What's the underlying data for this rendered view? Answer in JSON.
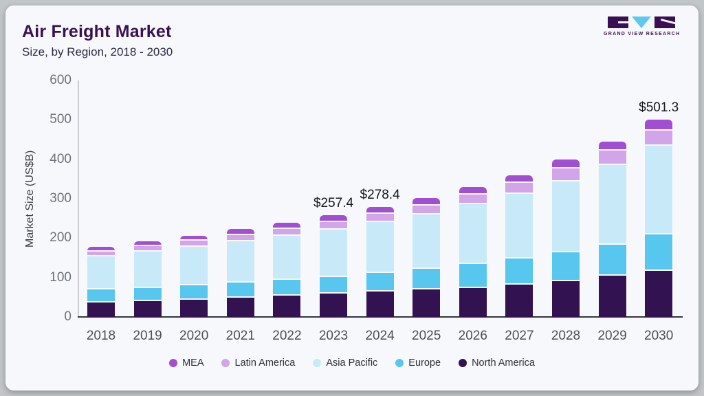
{
  "header": {
    "title": "Air Freight Market",
    "subtitle": "Size, by Region, 2018 - 2030"
  },
  "logo": {
    "text": "GRAND VIEW RESEARCH",
    "mark_dark_color": "#3b1052",
    "mark_triangle_color": "#5ec9ec"
  },
  "chart_data": {
    "type": "bar",
    "stacked": true,
    "title": "Air Freight Market",
    "subtitle": "Size, by Region, 2018 - 2030",
    "xlabel": "",
    "ylabel": "Market Size (US$B)",
    "ylim": [
      0,
      600
    ],
    "yticks": [
      0,
      100,
      200,
      300,
      400,
      500,
      600
    ],
    "grid": false,
    "categories": [
      "2018",
      "2019",
      "2020",
      "2021",
      "2022",
      "2023",
      "2024",
      "2025",
      "2026",
      "2027",
      "2028",
      "2029",
      "2030"
    ],
    "series": [
      {
        "name": "North America",
        "color": "#331251",
        "values": [
          37,
          40,
          43,
          48,
          54,
          59,
          64,
          69,
          74,
          82,
          91,
          104,
          116
        ]
      },
      {
        "name": "Europe",
        "color": "#57c7f0",
        "values": [
          32,
          33,
          37,
          39,
          40,
          43,
          48,
          53,
          60,
          66,
          73,
          80,
          93
        ]
      },
      {
        "name": "Asia Pacific",
        "color": "#c7e9f8",
        "values": [
          85,
          93,
          98,
          104,
          112,
          119,
          128,
          138,
          152,
          164,
          179,
          202,
          226
        ]
      },
      {
        "name": "Latin America",
        "color": "#d2a4e8",
        "values": [
          12,
          13,
          15,
          17,
          17,
          20,
          21,
          23,
          25,
          29,
          33,
          36,
          38
        ]
      },
      {
        "name": "MEA",
        "color": "#a14ed2",
        "values": [
          12,
          13,
          13,
          15,
          16,
          16.4,
          17.4,
          18,
          18,
          19,
          23,
          22,
          28.3
        ]
      }
    ],
    "totals": [
      178,
      192,
      206,
      223,
      239,
      257.4,
      278.4,
      301,
      329,
      360,
      399,
      444,
      501.3
    ],
    "annotations": [
      {
        "category": "2023",
        "text": "$257.4"
      },
      {
        "category": "2024",
        "text": "$278.4"
      },
      {
        "category": "2030",
        "text": "$501.3"
      }
    ],
    "legend_position": "bottom",
    "legend_items": [
      {
        "label": "MEA",
        "color": "#a14ed2"
      },
      {
        "label": "Latin America",
        "color": "#d2a4e8"
      },
      {
        "label": "Asia Pacific",
        "color": "#c7e9f8"
      },
      {
        "label": "Europe",
        "color": "#57c7f0"
      },
      {
        "label": "North America",
        "color": "#331251"
      }
    ]
  }
}
